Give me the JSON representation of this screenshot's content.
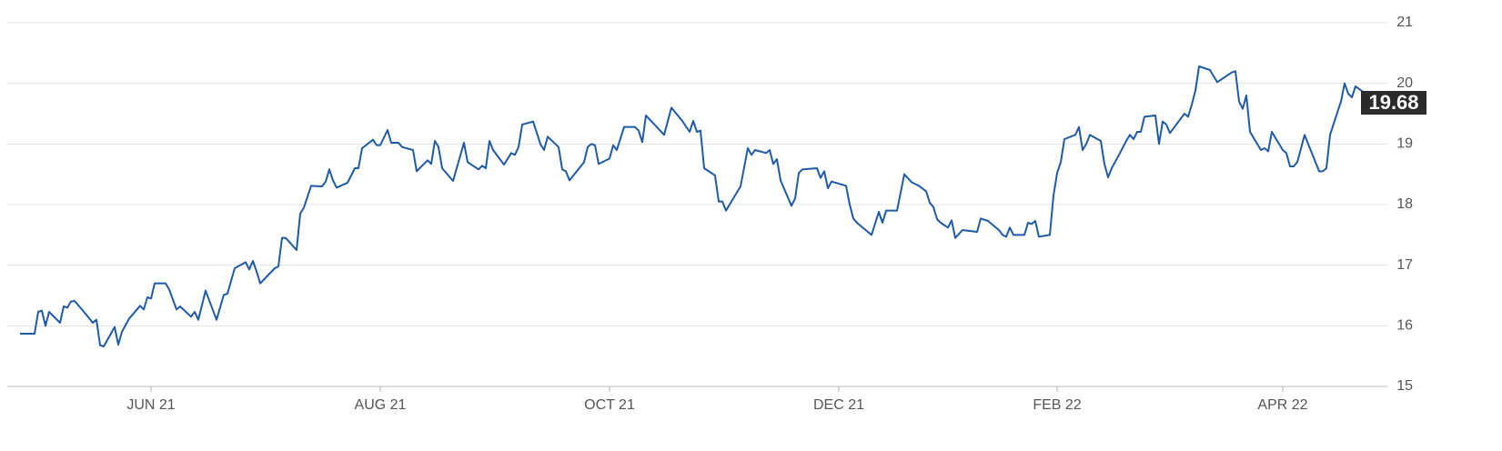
{
  "chart_data": {
    "type": "line",
    "x": [
      0,
      4,
      5,
      6,
      7,
      8,
      11,
      12,
      13,
      14,
      15,
      18,
      20,
      21,
      22,
      23,
      26,
      27,
      28,
      30,
      33,
      34,
      35,
      36,
      37,
      40,
      41,
      43,
      44,
      47,
      48,
      49,
      51,
      54,
      56,
      57,
      59,
      62,
      63,
      64,
      65,
      66,
      70,
      71,
      72,
      73,
      76,
      77,
      78,
      80,
      83,
      84,
      85,
      86,
      87,
      90,
      92,
      93,
      94,
      97,
      98,
      99,
      101,
      102,
      104,
      105,
      108,
      109,
      112,
      113,
      114,
      115,
      116,
      119,
      122,
      123,
      126,
      127,
      128,
      129,
      130,
      133,
      135,
      136,
      137,
      138,
      141,
      143,
      144,
      145,
      148,
      149,
      150,
      151,
      155,
      156,
      157,
      158,
      159,
      162,
      163,
      164,
      166,
      169,
      170,
      171,
      172,
      175,
      177,
      179,
      182,
      184,
      185,
      186,
      187,
      188,
      191,
      192,
      193,
      194,
      197,
      198,
      200,
      201,
      202,
      205,
      206,
      207,
      208,
      209,
      212,
      213,
      214,
      215,
      219,
      220,
      221,
      222,
      223,
      227,
      228,
      229,
      230,
      234,
      236,
      237,
      238,
      241,
      243,
      245,
      247,
      249,
      250,
      251,
      252,
      253,
      255,
      256,
      257,
      259,
      263,
      264,
      266,
      269,
      270,
      271,
      272,
      273,
      276,
      277,
      278,
      279,
      280,
      283,
      284,
      285,
      286,
      287,
      290,
      291,
      292,
      293,
      294,
      297,
      298,
      299,
      300,
      302,
      304,
      305,
      306,
      307,
      308,
      309,
      312,
      313,
      314,
      315,
      316,
      320,
      321,
      322,
      323,
      324,
      327,
      329,
      333,
      334,
      335,
      336,
      337,
      338,
      341,
      342,
      343,
      344,
      347,
      348,
      349,
      350,
      351,
      353,
      356,
      357,
      358,
      359,
      360,
      362,
      363,
      364,
      365,
      366,
      367,
      370,
      371,
      372
    ],
    "series": [
      {
        "color": "#1f5aa6",
        "values": [
          15.87,
          15.87,
          16.23,
          16.25,
          16.0,
          16.23,
          16.05,
          16.32,
          16.3,
          16.4,
          16.41,
          16.2,
          16.05,
          16.1,
          15.68,
          15.66,
          15.98,
          15.69,
          15.9,
          16.12,
          16.33,
          16.27,
          16.47,
          16.45,
          16.7,
          16.7,
          16.6,
          16.27,
          16.32,
          16.15,
          16.23,
          16.1,
          16.58,
          16.1,
          16.51,
          16.53,
          16.95,
          17.05,
          16.93,
          17.07,
          16.9,
          16.7,
          16.95,
          16.98,
          17.45,
          17.45,
          17.25,
          17.85,
          17.95,
          18.31,
          18.3,
          18.38,
          18.58,
          18.4,
          18.28,
          18.36,
          18.6,
          18.6,
          18.93,
          19.07,
          18.98,
          18.98,
          19.23,
          19.02,
          19.02,
          18.95,
          18.9,
          18.55,
          18.73,
          18.67,
          19.05,
          18.95,
          18.6,
          18.39,
          19.02,
          18.7,
          18.58,
          18.64,
          18.6,
          19.05,
          18.9,
          18.66,
          18.85,
          18.82,
          18.95,
          19.32,
          19.37,
          19.0,
          18.9,
          19.12,
          18.95,
          18.58,
          18.55,
          18.4,
          18.7,
          18.95,
          19.0,
          18.98,
          18.67,
          18.76,
          18.98,
          18.9,
          19.28,
          19.28,
          19.22,
          19.03,
          19.47,
          19.28,
          19.15,
          19.6,
          19.38,
          19.2,
          19.38,
          19.2,
          19.22,
          18.6,
          18.48,
          18.05,
          18.05,
          17.9,
          18.2,
          18.3,
          18.93,
          18.82,
          18.9,
          18.85,
          18.9,
          18.67,
          18.75,
          18.4,
          17.98,
          18.1,
          18.52,
          18.58,
          18.6,
          18.44,
          18.55,
          18.27,
          18.38,
          18.31,
          18.0,
          17.77,
          17.7,
          17.5,
          17.88,
          17.7,
          17.9,
          17.9,
          18.5,
          18.37,
          18.31,
          18.22,
          18.03,
          17.96,
          17.76,
          17.7,
          17.62,
          17.74,
          17.45,
          17.58,
          17.55,
          17.77,
          17.73,
          17.58,
          17.5,
          17.47,
          17.62,
          17.5,
          17.5,
          17.7,
          17.68,
          17.73,
          17.47,
          17.5,
          18.15,
          18.52,
          18.7,
          19.08,
          19.15,
          19.28,
          18.9,
          19.0,
          19.15,
          19.05,
          18.67,
          18.45,
          18.6,
          18.82,
          19.05,
          19.15,
          19.08,
          19.2,
          19.2,
          19.45,
          19.47,
          19.0,
          19.37,
          19.32,
          19.18,
          19.5,
          19.45,
          19.65,
          19.88,
          20.28,
          20.22,
          20.02,
          20.18,
          20.2,
          19.7,
          19.58,
          19.8,
          19.2,
          18.9,
          18.93,
          18.88,
          19.2,
          18.9,
          18.85,
          18.63,
          18.63,
          18.7,
          19.15,
          18.7,
          18.55,
          18.55,
          18.6,
          19.15,
          19.52,
          19.7,
          20.0,
          19.83,
          19.77,
          19.95,
          19.82,
          19.77,
          19.68
        ]
      }
    ],
    "xlim": [
      0,
      372
    ],
    "xticks": [
      {
        "value": 36,
        "label": "JUN 21"
      },
      {
        "value": 99,
        "label": "AUG 21"
      },
      {
        "value": 162,
        "label": "OCT 21"
      },
      {
        "value": 225,
        "label": "DEC 21"
      },
      {
        "value": 285,
        "label": "FEB 22"
      },
      {
        "value": 347,
        "label": "APR 22"
      }
    ],
    "ylim": [
      15,
      21
    ],
    "yticks": [
      15,
      16,
      17,
      18,
      19,
      20,
      21
    ],
    "grid": true
  }
}
